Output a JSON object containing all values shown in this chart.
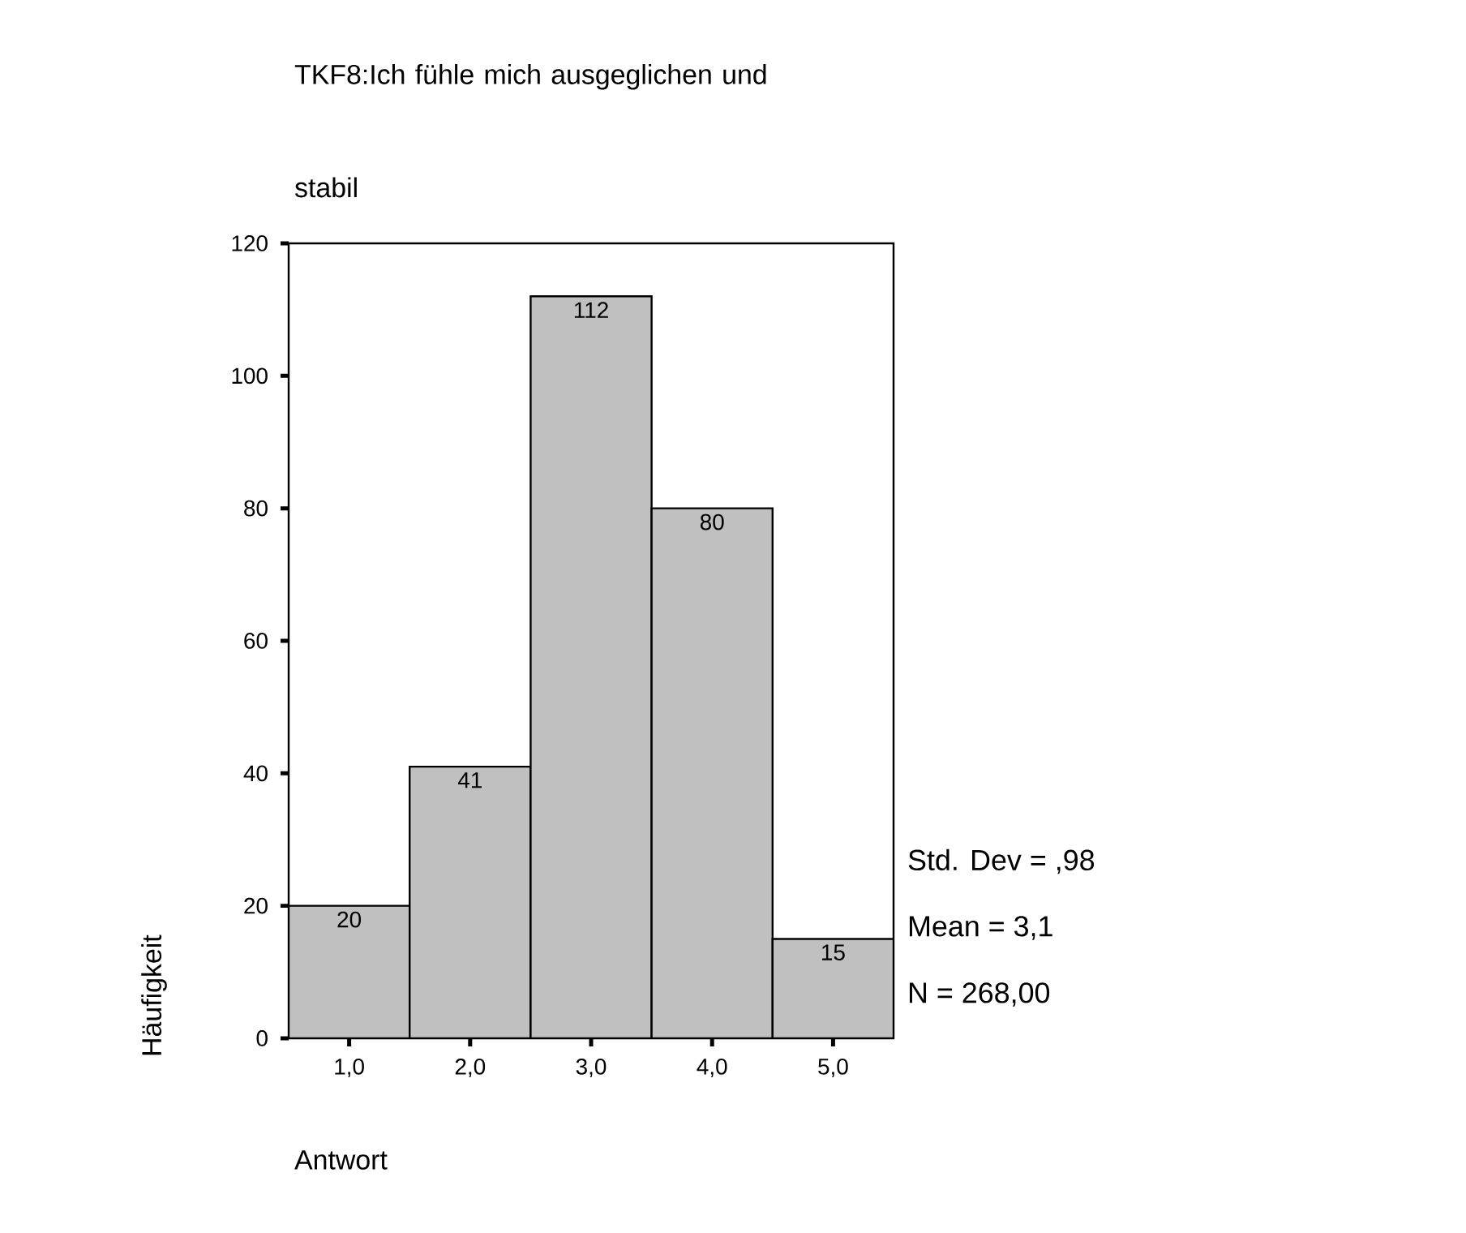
{
  "chart_data": {
    "type": "histogram",
    "title": "TKF8:Ich fühle mich ausgeglichen und stabil",
    "xlabel": "Antwort",
    "ylabel": "Häufigkeit",
    "bins": [
      0.5,
      1.5,
      2.5,
      3.5,
      4.5,
      5.5
    ],
    "values": [
      20,
      41,
      112,
      80,
      15
    ],
    "color": "#c0c0c0",
    "xlim": [
      0.5,
      5.5
    ],
    "xticks": [
      {
        "value": 1,
        "label": "1,0"
      },
      {
        "value": 2,
        "label": "2,0"
      },
      {
        "value": 3,
        "label": "3,0"
      },
      {
        "value": 4,
        "label": "4,0"
      },
      {
        "value": 5,
        "label": "5,0"
      }
    ],
    "ylim": [
      0,
      120
    ],
    "yticks": [
      0,
      20,
      40,
      60,
      80,
      100,
      120
    ],
    "data_labels": true,
    "annotations": [
      "Std. Dev = ,98",
      "Mean = 3,1",
      "N = 268,00"
    ]
  }
}
